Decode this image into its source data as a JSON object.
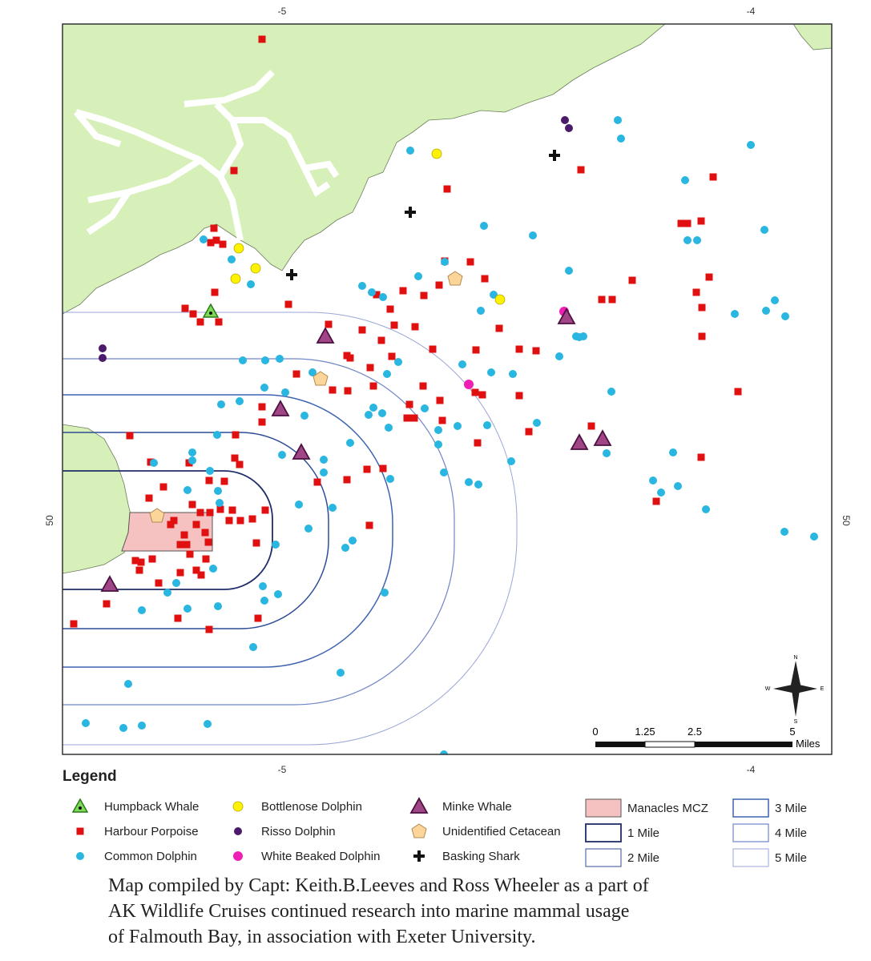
{
  "map": {
    "top_labels": [
      "-5",
      "-4"
    ],
    "bottom_labels": [
      "-5",
      "-4"
    ],
    "side_labels": [
      "50",
      "50"
    ],
    "compass": [
      "N",
      "E",
      "S",
      "W"
    ],
    "scale_bar": {
      "ticks": [
        "0",
        "1.25",
        "2.5",
        "5"
      ],
      "unit": "Miles"
    }
  },
  "legend": {
    "title": "Legend",
    "species": [
      "Humpback Whale",
      "Harbour Porpoise",
      "Common Dolphin",
      "Bottlenose Dolphin",
      "Risso Dolphin",
      "White Beaked Dolphin",
      "Minke Whale",
      "Unidentified Cetacean",
      "Basking Shark"
    ],
    "zones": [
      "Manacles MCZ",
      "1 Mile",
      "2 Mile",
      "3 Mile",
      "4 Mile",
      "5 Mile"
    ]
  },
  "caption": [
    "Map compiled by Capt: Keith.B.Leeves and Ross Wheeler as a part of",
    "AK Wildlife Cruises continued research into marine mammal usage",
    "of Falmouth Bay, in association with Exeter University."
  ]
}
